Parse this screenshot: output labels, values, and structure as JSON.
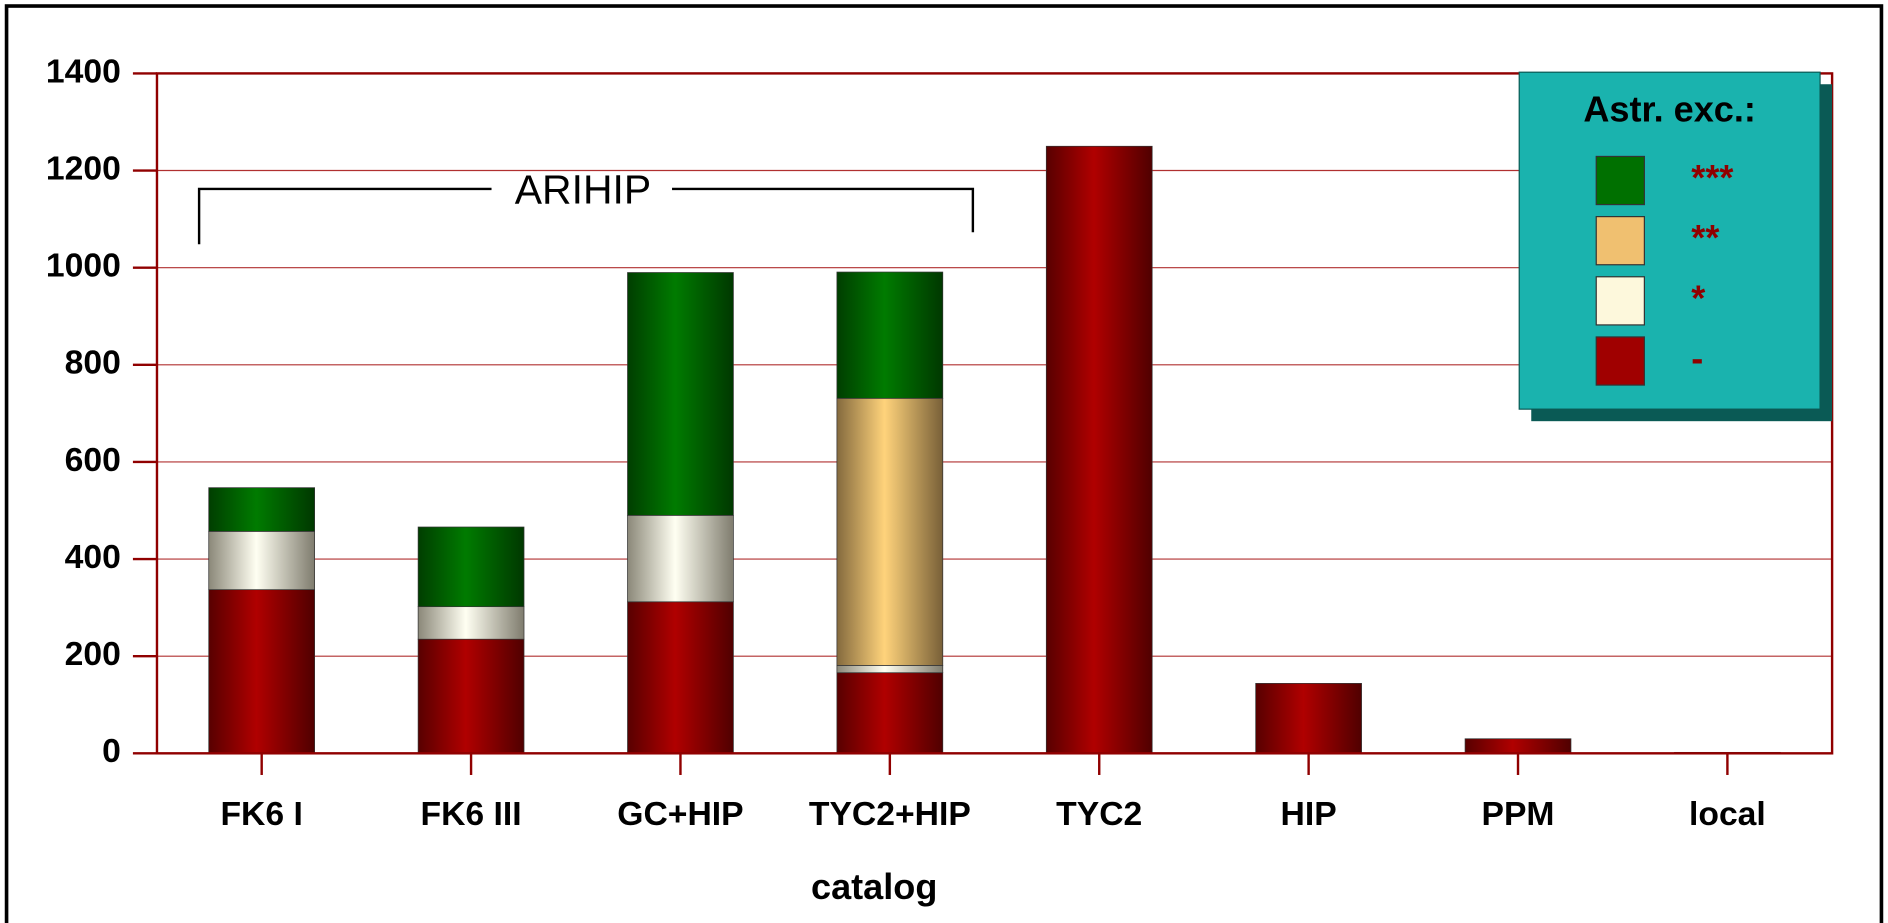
{
  "chart_data": {
    "type": "stacked_bar",
    "categories": [
      "FK6 I",
      "FK6 III",
      "GC+HIP",
      "TYC2+HIP",
      "TYC2",
      "HIP",
      "PPM",
      "local"
    ],
    "series": [
      {
        "name": "-",
        "color": "#a00000",
        "values": [
          337,
          235,
          312,
          166,
          1250,
          144,
          30,
          2
        ]
      },
      {
        "name": "*",
        "color": "#fdf8dc",
        "values": [
          120,
          67,
          178,
          15,
          0,
          0,
          0,
          0
        ]
      },
      {
        "name": "**",
        "color": "#f0c070",
        "values": [
          0,
          0,
          0,
          550,
          0,
          0,
          0,
          0
        ]
      },
      {
        "name": "***",
        "color": "#007000",
        "values": [
          90,
          164,
          500,
          260,
          0,
          0,
          0,
          0
        ]
      }
    ],
    "ylim": [
      0,
      1400
    ],
    "yticks": [
      0,
      200,
      400,
      600,
      800,
      1000,
      1200,
      1400
    ],
    "grid": true,
    "xlabel": "catalog",
    "legend_title": "Astr. exc.:",
    "legend": "upper right",
    "annotation": "ARIHIP"
  }
}
